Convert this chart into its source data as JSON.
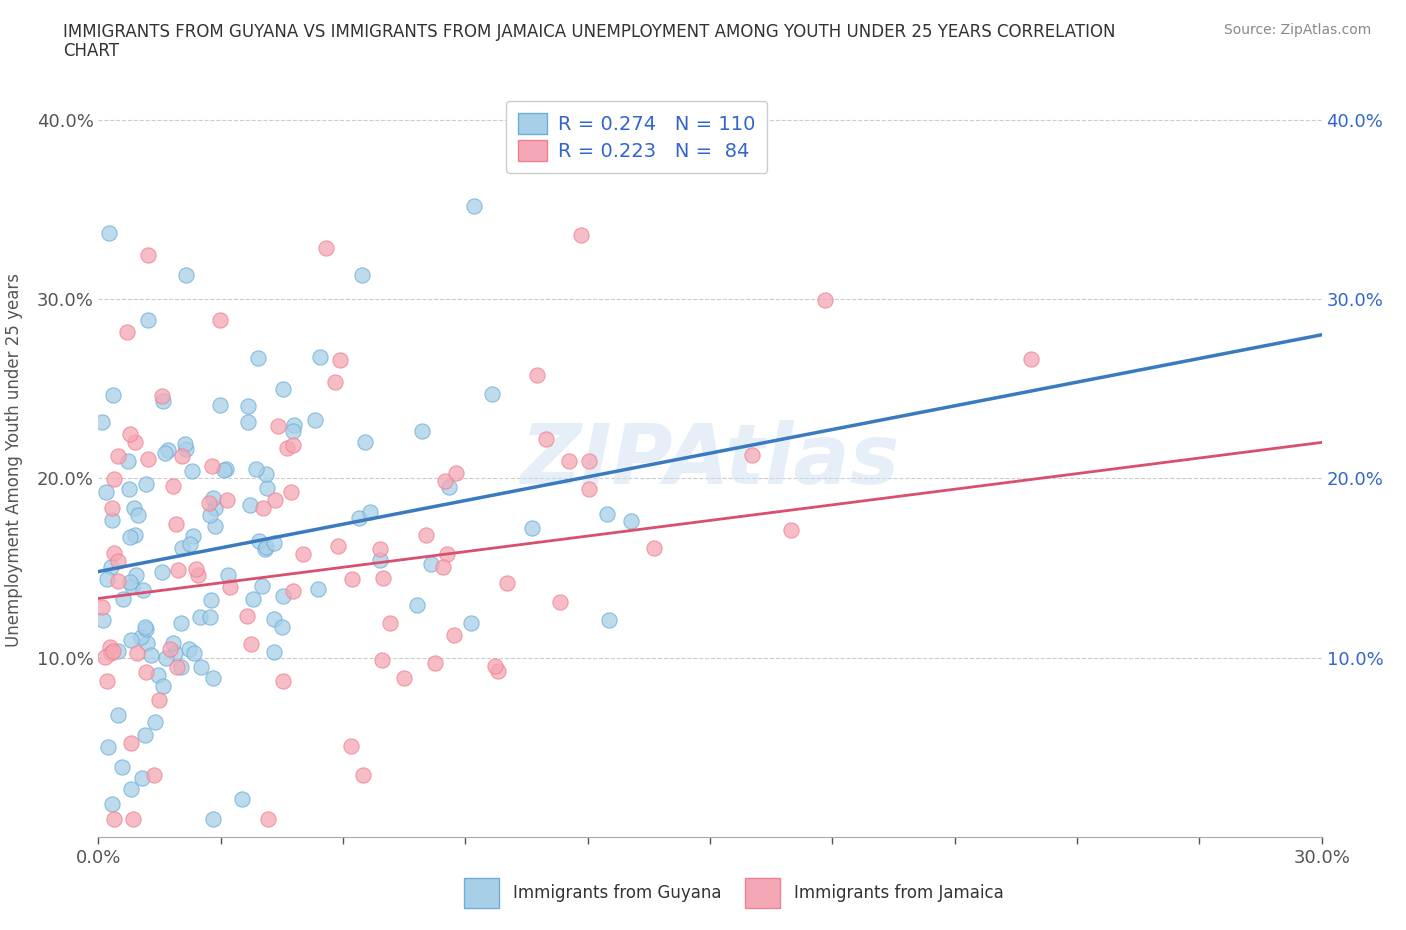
{
  "title_line1": "IMMIGRANTS FROM GUYANA VS IMMIGRANTS FROM JAMAICA UNEMPLOYMENT AMONG YOUTH UNDER 25 YEARS CORRELATION",
  "title_line2": "CHART",
  "source": "Source: ZipAtlas.com",
  "ylabel_text": "Unemployment Among Youth under 25 years",
  "xlim": [
    0.0,
    0.3
  ],
  "ylim": [
    0.0,
    0.42
  ],
  "x_ticks": [
    0.0,
    0.03,
    0.06,
    0.09,
    0.12,
    0.15,
    0.18,
    0.21,
    0.24,
    0.27,
    0.3
  ],
  "y_ticks": [
    0.0,
    0.1,
    0.2,
    0.3,
    0.4
  ],
  "y_tick_labels": [
    "",
    "10.0%",
    "20.0%",
    "30.0%",
    "40.0%"
  ],
  "watermark": "ZIPAtlas",
  "guyana_color": "#a8cfe8",
  "jamaica_color": "#f4a7b5",
  "guyana_edge_color": "#6baed6",
  "jamaica_edge_color": "#f08090",
  "guyana_line_color": "#3a7abf",
  "jamaica_line_color": "#d94f6e",
  "R_guyana": 0.274,
  "N_guyana": 110,
  "R_jamaica": 0.223,
  "N_jamaica": 84,
  "legend_label1": "R = 0.274   N = 110",
  "legend_label2": "R = 0.223   N =  84",
  "legend_text_color": "#3366cc",
  "title_color": "#333333",
  "source_color": "#888888",
  "label_color": "#555555",
  "grid_color": "#cccccc",
  "right_tick_color": "#3366cc",
  "guyana_line_intercept": 0.148,
  "guyana_line_slope": 0.44,
  "jamaica_line_intercept": 0.133,
  "jamaica_line_slope": 0.29
}
